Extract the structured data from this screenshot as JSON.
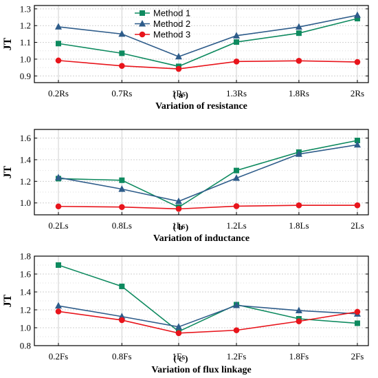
{
  "chart_data": [
    {
      "type": "line",
      "panel_label": "( a )",
      "xlabel": "Variation of  resistance",
      "ylabel": "JT",
      "categories": [
        "0.2Rs",
        "0.7Rs",
        "1Rs",
        "1.3Rs",
        "1.8Rs",
        "2Rs"
      ],
      "ylim": [
        0.86,
        1.32
      ],
      "yticks": [
        "0.9",
        "1.0",
        "1.1",
        "1.2",
        "1.3"
      ],
      "yticks_values": [
        0.9,
        1.0,
        1.1,
        1.2,
        1.3
      ],
      "grid": true,
      "legend": "top-left",
      "series": [
        {
          "name": "Method 1",
          "color": "#0e8a5f",
          "marker": "square",
          "values": [
            1.093,
            1.035,
            0.957,
            1.102,
            1.155,
            1.242
          ]
        },
        {
          "name": "Method 2",
          "color": "#2e5c8a",
          "marker": "triangle",
          "values": [
            1.193,
            1.15,
            1.015,
            1.14,
            1.192,
            1.262
          ]
        },
        {
          "name": "Method 3",
          "color": "#e8141b",
          "marker": "circle",
          "values": [
            0.992,
            0.96,
            0.942,
            0.986,
            0.99,
            0.983
          ]
        }
      ]
    },
    {
      "type": "line",
      "panel_label": "( b )",
      "xlabel": "Variation of inductance",
      "ylabel": "JT",
      "categories": [
        "0.2Ls",
        "0.8Ls",
        "1Ls",
        "1.2Ls",
        "1.8Ls",
        "2Ls"
      ],
      "ylim": [
        0.89,
        1.68
      ],
      "yticks": [
        "1.0",
        "1.2",
        "1.4",
        "1.6"
      ],
      "yticks_values": [
        1.0,
        1.2,
        1.4,
        1.6
      ],
      "grid": true,
      "series": [
        {
          "name": "Method 1",
          "color": "#0e8a5f",
          "marker": "square",
          "values": [
            1.225,
            1.21,
            0.96,
            1.3,
            1.47,
            1.578
          ]
        },
        {
          "name": "Method 2",
          "color": "#2e5c8a",
          "marker": "triangle",
          "values": [
            1.235,
            1.128,
            1.015,
            1.23,
            1.452,
            1.538
          ]
        },
        {
          "name": "Method 3",
          "color": "#e8141b",
          "marker": "circle",
          "values": [
            0.968,
            0.962,
            0.945,
            0.97,
            0.978,
            0.978
          ]
        }
      ]
    },
    {
      "type": "line",
      "panel_label": "( c )",
      "xlabel": "Variation of flux linkage",
      "ylabel": "JT",
      "categories": [
        "0.2Fs",
        "0.8Fs",
        "1Fs",
        "1.2Fs",
        "1.8Fs",
        "2Fs"
      ],
      "ylim": [
        0.8,
        1.8
      ],
      "yticks": [
        "0.8",
        "1.0",
        "1.2",
        "1.4",
        "1.6",
        "1.8"
      ],
      "yticks_values": [
        0.8,
        1.0,
        1.2,
        1.4,
        1.6,
        1.8
      ],
      "grid": true,
      "series": [
        {
          "name": "Method 1",
          "color": "#0e8a5f",
          "marker": "square",
          "values": [
            1.7,
            1.462,
            0.958,
            1.258,
            1.1,
            1.05
          ]
        },
        {
          "name": "Method 2",
          "color": "#2e5c8a",
          "marker": "triangle",
          "values": [
            1.245,
            1.125,
            1.01,
            1.25,
            1.192,
            1.155
          ]
        },
        {
          "name": "Method 3",
          "color": "#e8141b",
          "marker": "circle",
          "values": [
            1.182,
            1.085,
            0.94,
            0.972,
            1.072,
            1.178
          ]
        }
      ]
    }
  ]
}
